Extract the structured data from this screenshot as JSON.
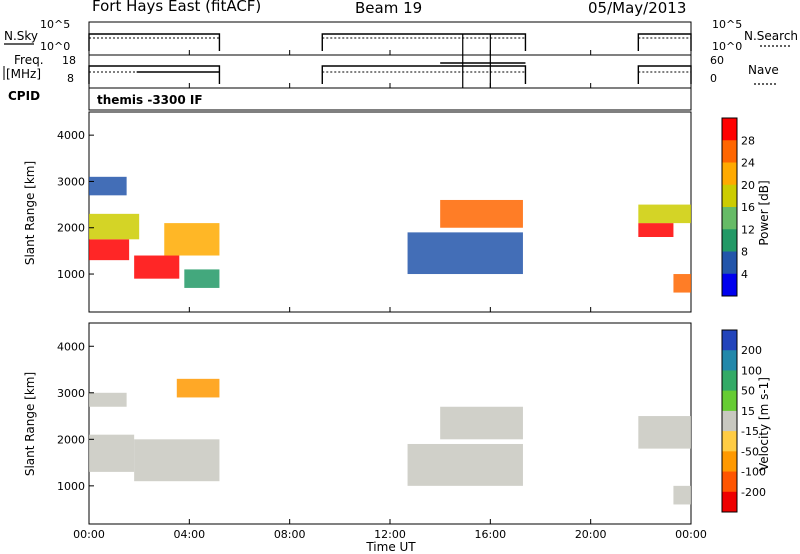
{
  "header": {
    "radar": "Fort Hays East (fitACF)",
    "beam": "Beam 19",
    "date": "05/May/2013"
  },
  "small_panels": {
    "nsky_label": "N.Sky",
    "nsky_ticks": [
      "10^5",
      "10^0"
    ],
    "nsearch_label": "N.Search",
    "nsearch_ticks": [
      "10^5",
      "10^0"
    ],
    "freq_label_1": "Freq.",
    "freq_label_2": "[MHz]",
    "freq_ticks": [
      "18",
      "8"
    ],
    "nave_label": "Nave",
    "nave_ticks": [
      "60",
      "0"
    ],
    "cpid_label": "CPID",
    "cpid_text": "themis -3300 IF"
  },
  "chart_data": [
    {
      "type": "heatmap",
      "name": "power-panel",
      "ylabel": "Slant Range [km]",
      "yticks": [
        "4000",
        "3000",
        "2000",
        "1000"
      ],
      "colorbar_label": "Power [dB]",
      "colorbar_ticks": [
        "28",
        "24",
        "20",
        "16",
        "12",
        "8",
        "4"
      ],
      "colors": [
        "#ff0000",
        "#ff6600",
        "#ffaa00",
        "#cccc00",
        "#66bb66",
        "#229966",
        "#2255aa",
        "#0000ee"
      ],
      "regions": [
        {
          "t0": 0.0,
          "t1": 1.6,
          "r0": 1300,
          "r1": 1750,
          "level": 0
        },
        {
          "t0": 0.0,
          "t1": 2.0,
          "r0": 1750,
          "r1": 2300,
          "level": 3
        },
        {
          "t0": 0.0,
          "t1": 1.5,
          "r0": 2700,
          "r1": 3100,
          "level": 6
        },
        {
          "t0": 1.8,
          "t1": 3.6,
          "r0": 900,
          "r1": 1400,
          "level": 0
        },
        {
          "t0": 3.0,
          "t1": 5.2,
          "r0": 1400,
          "r1": 2100,
          "level": 2
        },
        {
          "t0": 3.8,
          "t1": 5.2,
          "r0": 700,
          "r1": 1100,
          "level": 5
        },
        {
          "t0": 12.7,
          "t1": 17.3,
          "r0": 1000,
          "r1": 1900,
          "level": 6
        },
        {
          "t0": 14.0,
          "t1": 17.3,
          "r0": 2000,
          "r1": 2600,
          "level": 1
        },
        {
          "t0": 21.9,
          "t1": 23.3,
          "r0": 1800,
          "r1": 2100,
          "level": 0
        },
        {
          "t0": 21.9,
          "t1": 24.0,
          "r0": 2100,
          "r1": 2500,
          "level": 3
        },
        {
          "t0": 23.3,
          "t1": 24.0,
          "r0": 600,
          "r1": 1000,
          "level": 1
        }
      ]
    },
    {
      "type": "heatmap",
      "name": "velocity-panel",
      "ylabel": "Slant Range [km]",
      "yticks": [
        "4000",
        "3000",
        "2000",
        "1000"
      ],
      "colorbar_label": "Velocity [m s-1]",
      "colorbar_ticks": [
        "200",
        "100",
        "50",
        "15",
        "-15",
        "-50",
        "-100",
        "-200"
      ],
      "colors": [
        "#2244bb",
        "#2288aa",
        "#33aa66",
        "#66cc33",
        "#c8c8c0",
        "#ffcc44",
        "#ff9900",
        "#ff5500",
        "#ee0000"
      ],
      "regions": [
        {
          "t0": 0.0,
          "t1": 1.8,
          "r0": 1300,
          "r1": 2100,
          "level": 4
        },
        {
          "t0": 1.8,
          "t1": 5.2,
          "r0": 1100,
          "r1": 2000,
          "level": 4
        },
        {
          "t0": 0.0,
          "t1": 1.5,
          "r0": 2700,
          "r1": 3000,
          "level": 4
        },
        {
          "t0": 3.5,
          "t1": 5.2,
          "r0": 2900,
          "r1": 3300,
          "level": 6
        },
        {
          "t0": 12.7,
          "t1": 17.3,
          "r0": 1000,
          "r1": 1900,
          "level": 4
        },
        {
          "t0": 14.0,
          "t1": 17.3,
          "r0": 2000,
          "r1": 2700,
          "level": 4
        },
        {
          "t0": 21.9,
          "t1": 24.0,
          "r0": 1800,
          "r1": 2500,
          "level": 4
        },
        {
          "t0": 23.3,
          "t1": 24.0,
          "r0": 600,
          "r1": 1000,
          "level": 4
        }
      ]
    }
  ],
  "time_axis": {
    "xlabel": "Time UT",
    "ticks": [
      "00:00",
      "04:00",
      "08:00",
      "12:00",
      "16:00",
      "20:00",
      "00:00"
    ],
    "xlim": [
      0,
      24
    ],
    "yrange_km": [
      180,
      4500
    ]
  },
  "coverage_intervals": [
    [
      0.0,
      5.2
    ],
    [
      9.3,
      17.4
    ],
    [
      21.9,
      24.0
    ]
  ]
}
